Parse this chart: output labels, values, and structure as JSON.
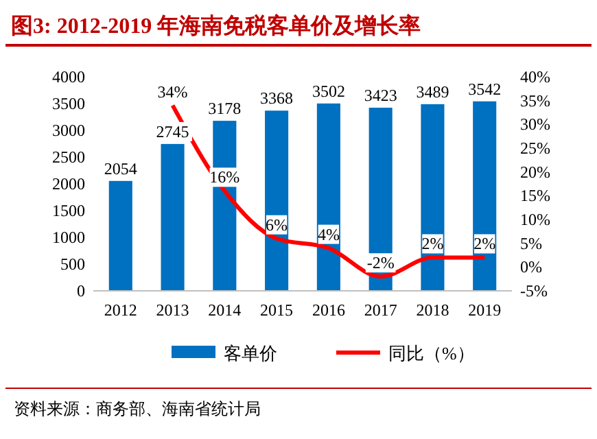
{
  "chart_data": {
    "type": "bar",
    "title": "图3:    2012-2019 年海南免税客单价及增长率",
    "categories": [
      "2012",
      "2013",
      "2014",
      "2015",
      "2016",
      "2017",
      "2018",
      "2019"
    ],
    "series": [
      {
        "name": "客单价",
        "color": "#0070c0",
        "values": [
          2054,
          2745,
          3178,
          3368,
          3502,
          3423,
          3489,
          3542
        ],
        "value_labels": [
          "2054",
          "2745",
          "3178",
          "3368",
          "3502",
          "3423",
          "3489",
          "3542"
        ]
      },
      {
        "name": "同比（%）",
        "color": "#ff0000",
        "type": "line",
        "axis": "y2",
        "values": [
          null,
          34,
          16,
          6,
          4,
          -2,
          2,
          2
        ],
        "value_labels": [
          null,
          "34%",
          "16%",
          "6%",
          "4%",
          "-2%",
          "2%",
          "2%"
        ]
      }
    ],
    "ylim": [
      0,
      4000
    ],
    "yticks": [
      0,
      500,
      1000,
      1500,
      2000,
      2500,
      3000,
      3500,
      4000
    ],
    "y2lim": [
      -5,
      40
    ],
    "y2ticks": [
      {
        "value": -5,
        "label": "-5%"
      },
      {
        "value": 0,
        "label": "0%"
      },
      {
        "value": 5,
        "label": "5%"
      },
      {
        "value": 10,
        "label": "10%"
      },
      {
        "value": 15,
        "label": "15%"
      },
      {
        "value": 20,
        "label": "20%"
      },
      {
        "value": 25,
        "label": "25%"
      },
      {
        "value": 30,
        "label": "30%"
      },
      {
        "value": 35,
        "label": "35%"
      },
      {
        "value": 40,
        "label": "40%"
      }
    ],
    "legend": "bottom",
    "grid": false,
    "line_style": "solid",
    "marker": "none",
    "annotations": [
      "资料来源：商务部、海南省统计局"
    ]
  }
}
